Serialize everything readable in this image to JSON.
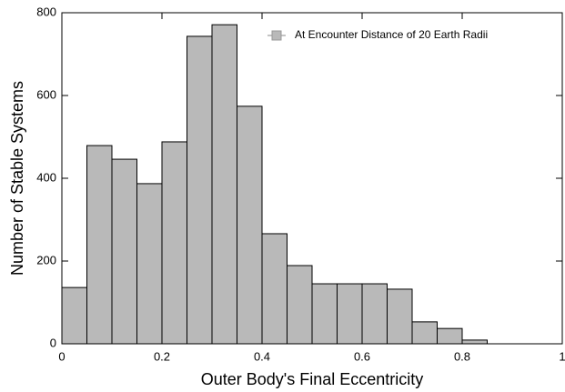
{
  "chart_data": {
    "type": "histogram",
    "xlabel": "Outer Body's Final Eccentricity",
    "ylabel": "Number of Stable Systems",
    "bins": [
      0,
      0.05,
      0.1,
      0.15,
      0.2,
      0.25,
      0.3,
      0.35,
      0.4,
      0.45,
      0.5,
      0.55,
      0.6,
      0.65,
      0.7,
      0.75,
      0.8,
      0.85,
      0.9,
      0.95,
      1
    ],
    "series": [
      {
        "name": "At Encounter Distance of 20 Earth Radii",
        "color": "#b9b9b9",
        "values": [
          136,
          479,
          446,
          387,
          488,
          743,
          771,
          574,
          266,
          189,
          145,
          145,
          145,
          132,
          53,
          37,
          9,
          0,
          0,
          0
        ]
      }
    ],
    "xlim": [
      0,
      1
    ],
    "xticks": [
      0,
      0.2,
      0.4,
      0.6,
      0.8,
      1
    ],
    "ylim": [
      0,
      800
    ],
    "yticks": [
      0,
      200,
      400,
      600,
      800
    ],
    "legend": "upper right"
  }
}
